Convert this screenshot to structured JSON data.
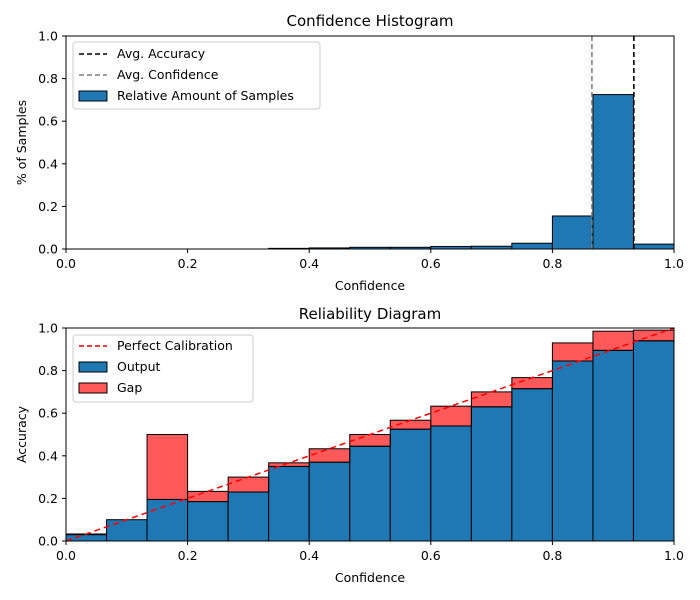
{
  "chart_data": [
    {
      "type": "bar",
      "title": "Confidence Histogram",
      "xlabel": "Confidence",
      "ylabel": "% of Samples",
      "xlim": [
        0.0,
        1.0
      ],
      "ylim": [
        0.0,
        1.0
      ],
      "xticks": [
        "0.0",
        "0.2",
        "0.4",
        "0.6",
        "0.8",
        "1.0"
      ],
      "yticks": [
        "0.0",
        "0.2",
        "0.4",
        "0.6",
        "0.8",
        "1.0"
      ],
      "bin_edges": [
        0.0,
        0.0667,
        0.1333,
        0.2,
        0.2667,
        0.3333,
        0.4,
        0.4667,
        0.5333,
        0.6,
        0.6667,
        0.7333,
        0.8,
        0.8667,
        0.9333,
        1.0
      ],
      "series": [
        {
          "name": "Relative Amount of Samples",
          "color": "#1f77b4",
          "values": [
            0.0,
            0.0,
            0.0,
            0.0,
            0.0,
            0.003,
            0.005,
            0.008,
            0.008,
            0.012,
            0.013,
            0.027,
            0.155,
            0.725,
            0.023
          ]
        }
      ],
      "lines": [
        {
          "name": "Avg. Accuracy",
          "x": 0.934,
          "color": "#000000"
        },
        {
          "name": "Avg. Confidence",
          "x": 0.865,
          "color": "#808080"
        }
      ],
      "legend": {
        "position": "top-left",
        "entries": [
          "Avg. Accuracy",
          "Avg. Confidence",
          "Relative Amount of Samples"
        ]
      }
    },
    {
      "type": "bar",
      "title": "Reliability Diagram",
      "xlabel": "Confidence",
      "ylabel": "Accuracy",
      "xlim": [
        0.0,
        1.0
      ],
      "ylim": [
        0.0,
        1.0
      ],
      "xticks": [
        "0.0",
        "0.2",
        "0.4",
        "0.6",
        "0.8",
        "1.0"
      ],
      "yticks": [
        "0.0",
        "0.2",
        "0.4",
        "0.6",
        "0.8",
        "1.0"
      ],
      "bin_edges": [
        0.0,
        0.0667,
        0.1333,
        0.2,
        0.2667,
        0.3333,
        0.4,
        0.4667,
        0.5333,
        0.6,
        0.6667,
        0.7333,
        0.8,
        0.8667,
        0.9333,
        1.0
      ],
      "series": [
        {
          "name": "Output",
          "color": "#1f77b4",
          "values": [
            0.03,
            0.1,
            0.195,
            0.185,
            0.23,
            0.35,
            0.37,
            0.445,
            0.525,
            0.54,
            0.63,
            0.715,
            0.845,
            0.895,
            0.94
          ]
        },
        {
          "name": "Gap",
          "color": "#ff0000",
          "values": [
            0.033,
            0.1,
            0.5,
            0.233,
            0.3,
            0.367,
            0.433,
            0.5,
            0.567,
            0.633,
            0.7,
            0.767,
            0.93,
            0.985,
            0.99
          ]
        }
      ],
      "lines": [
        {
          "name": "Perfect Calibration",
          "from": [
            0.0,
            0.0
          ],
          "to": [
            1.0,
            1.0
          ],
          "color": "#ff0000"
        }
      ],
      "legend": {
        "position": "top-left",
        "entries": [
          "Perfect Calibration",
          "Output",
          "Gap"
        ]
      }
    }
  ]
}
